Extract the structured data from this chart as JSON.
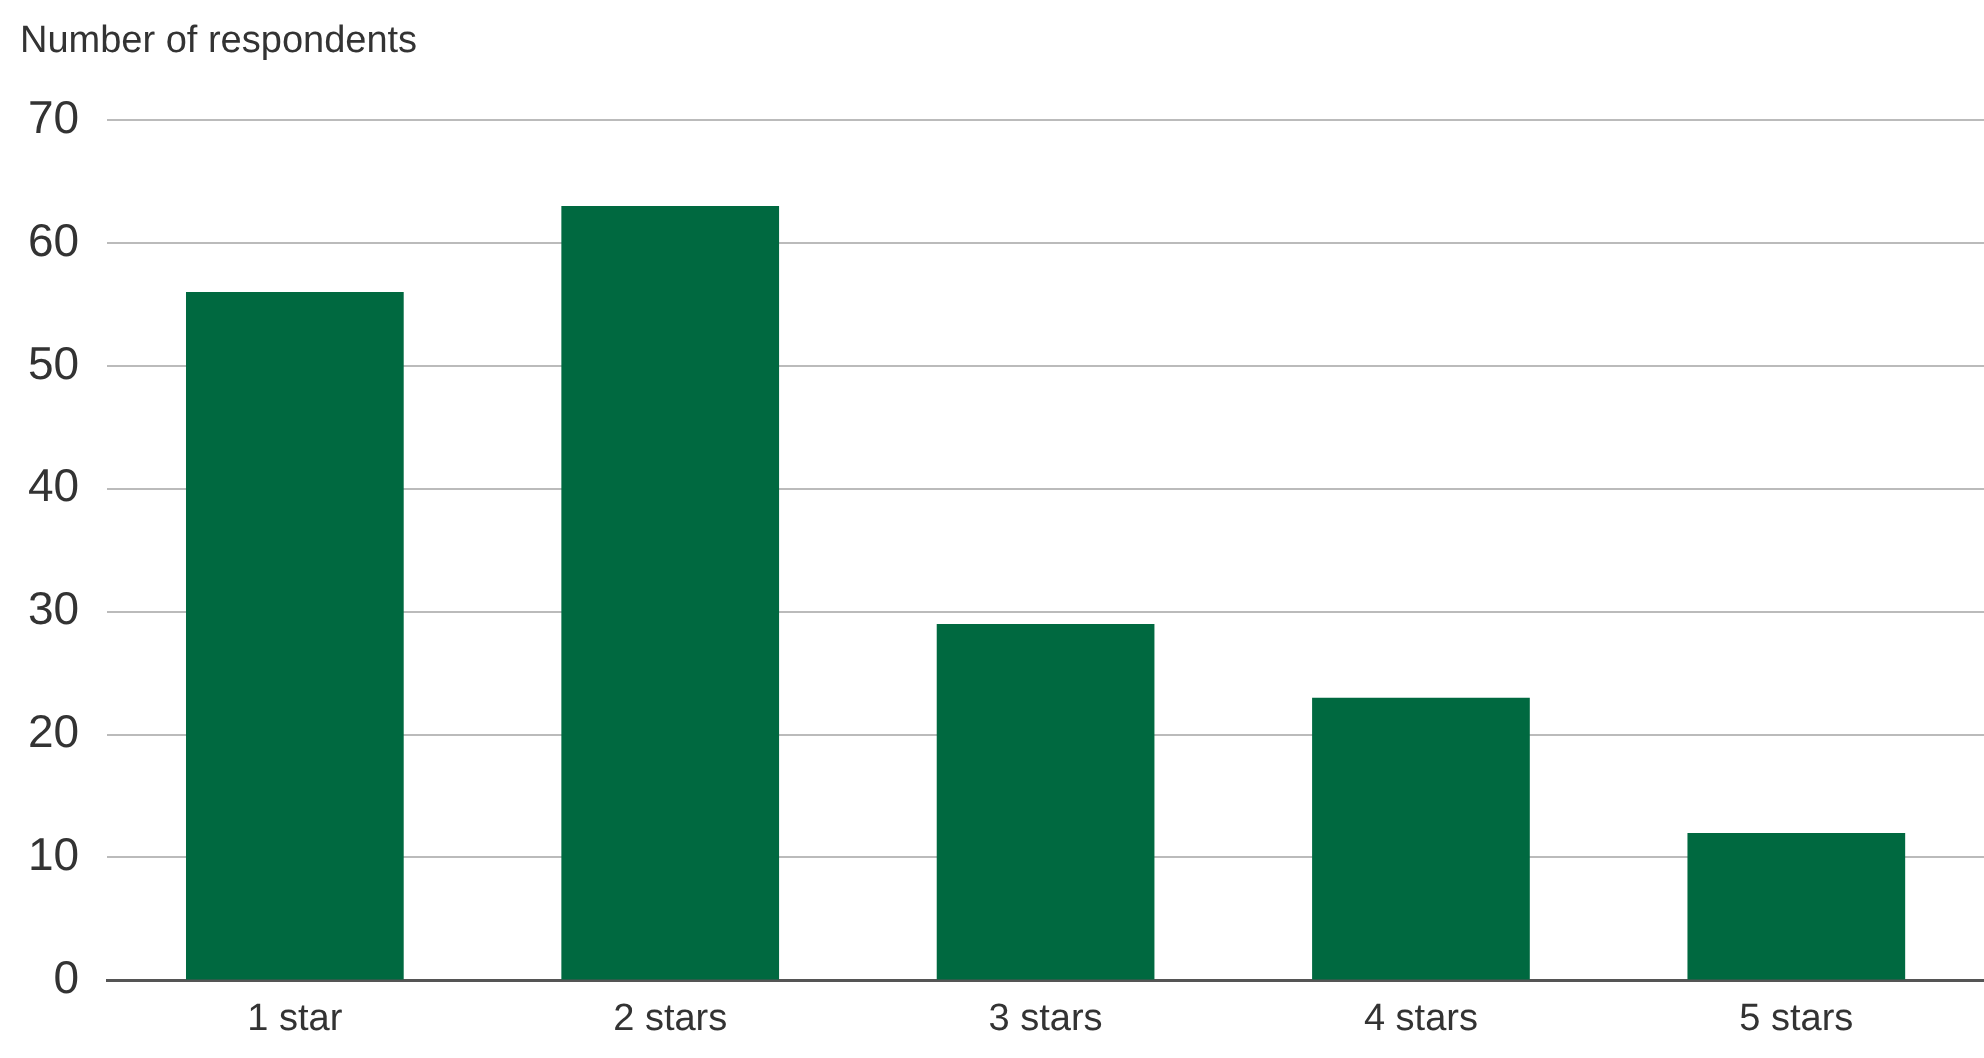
{
  "chart_data": {
    "type": "bar",
    "ylabel": "Number of respondents",
    "categories": [
      "1 star",
      "2 stars",
      "3 stars",
      "4 stars",
      "5 stars"
    ],
    "values": [
      56,
      63,
      29,
      23,
      12
    ],
    "color": "#006940",
    "ylim": [
      0,
      70
    ],
    "yticks": [
      0,
      10,
      20,
      30,
      40,
      50,
      60,
      70
    ],
    "grid": "y",
    "legend": false
  }
}
